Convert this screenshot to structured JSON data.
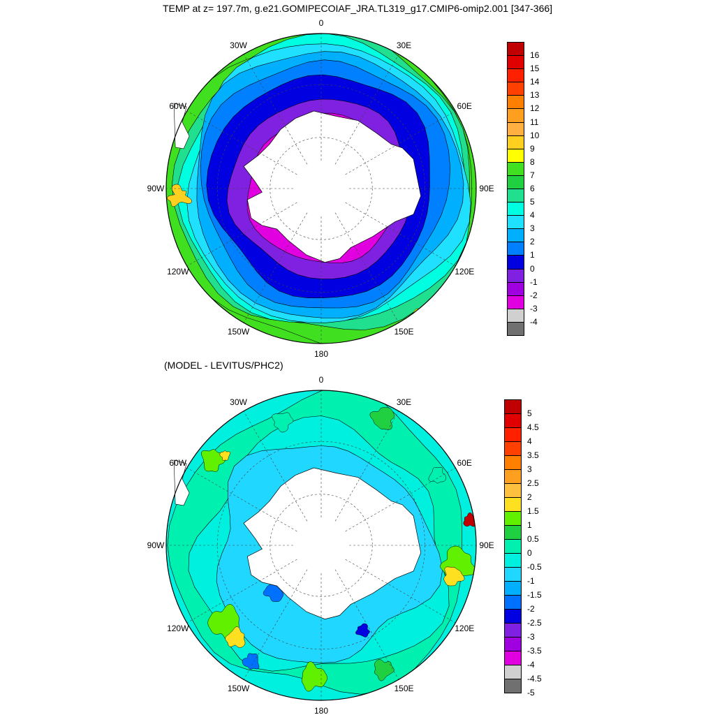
{
  "title": "TEMP at z= 197.7m, g.e21.GOMIPECOIAF_JRA.TL319_g17.CMIP6-omip2.001 [347-366]",
  "subtitle": "(MODEL - LEVITUS/PHC2)",
  "longitude_labels": [
    "0",
    "30E",
    "60E",
    "90E",
    "120E",
    "150E",
    "180",
    "150W",
    "120W",
    "90W",
    "60W",
    "30W"
  ],
  "land_color": "#ffffff",
  "maps": [
    {
      "name": "temperature",
      "levels": [
        "16",
        "15",
        "14",
        "13",
        "12",
        "11",
        "10",
        "9",
        "8",
        "7",
        "6",
        "5",
        "4",
        "3",
        "2",
        "1",
        "0",
        "-1",
        "-2",
        "-3",
        "-4"
      ],
      "colors": [
        "#c00000",
        "#e00000",
        "#ff2000",
        "#ff4000",
        "#ff8000",
        "#ff9f20",
        "#ffb040",
        "#ffd020",
        "#ffff00",
        "#40e020",
        "#20d040",
        "#20e090",
        "#00ffe0",
        "#20e0ff",
        "#00b0ff",
        "#0080ff",
        "#0000e0",
        "#8020e0",
        "#a000e0",
        "#e000e0",
        "#d0d0d0",
        "#707070"
      ]
    },
    {
      "name": "difference",
      "levels": [
        "5",
        "4.5",
        "4",
        "3.5",
        "3",
        "2.5",
        "2",
        "1.5",
        "1",
        "0.5",
        "0",
        "-0.5",
        "-1",
        "-1.5",
        "-2",
        "-2.5",
        "-3",
        "-3.5",
        "-4",
        "-4.5",
        "-5"
      ],
      "colors": [
        "#c00000",
        "#e00000",
        "#ff2000",
        "#ff4000",
        "#ff8000",
        "#ff9f20",
        "#ffc040",
        "#ffe020",
        "#60f000",
        "#20d040",
        "#00f0b0",
        "#00f0e0",
        "#20d8ff",
        "#00b0ff",
        "#0070ff",
        "#0000e0",
        "#8020e0",
        "#a000e0",
        "#e000e0",
        "#d0d0d0",
        "#707070"
      ]
    }
  ]
}
